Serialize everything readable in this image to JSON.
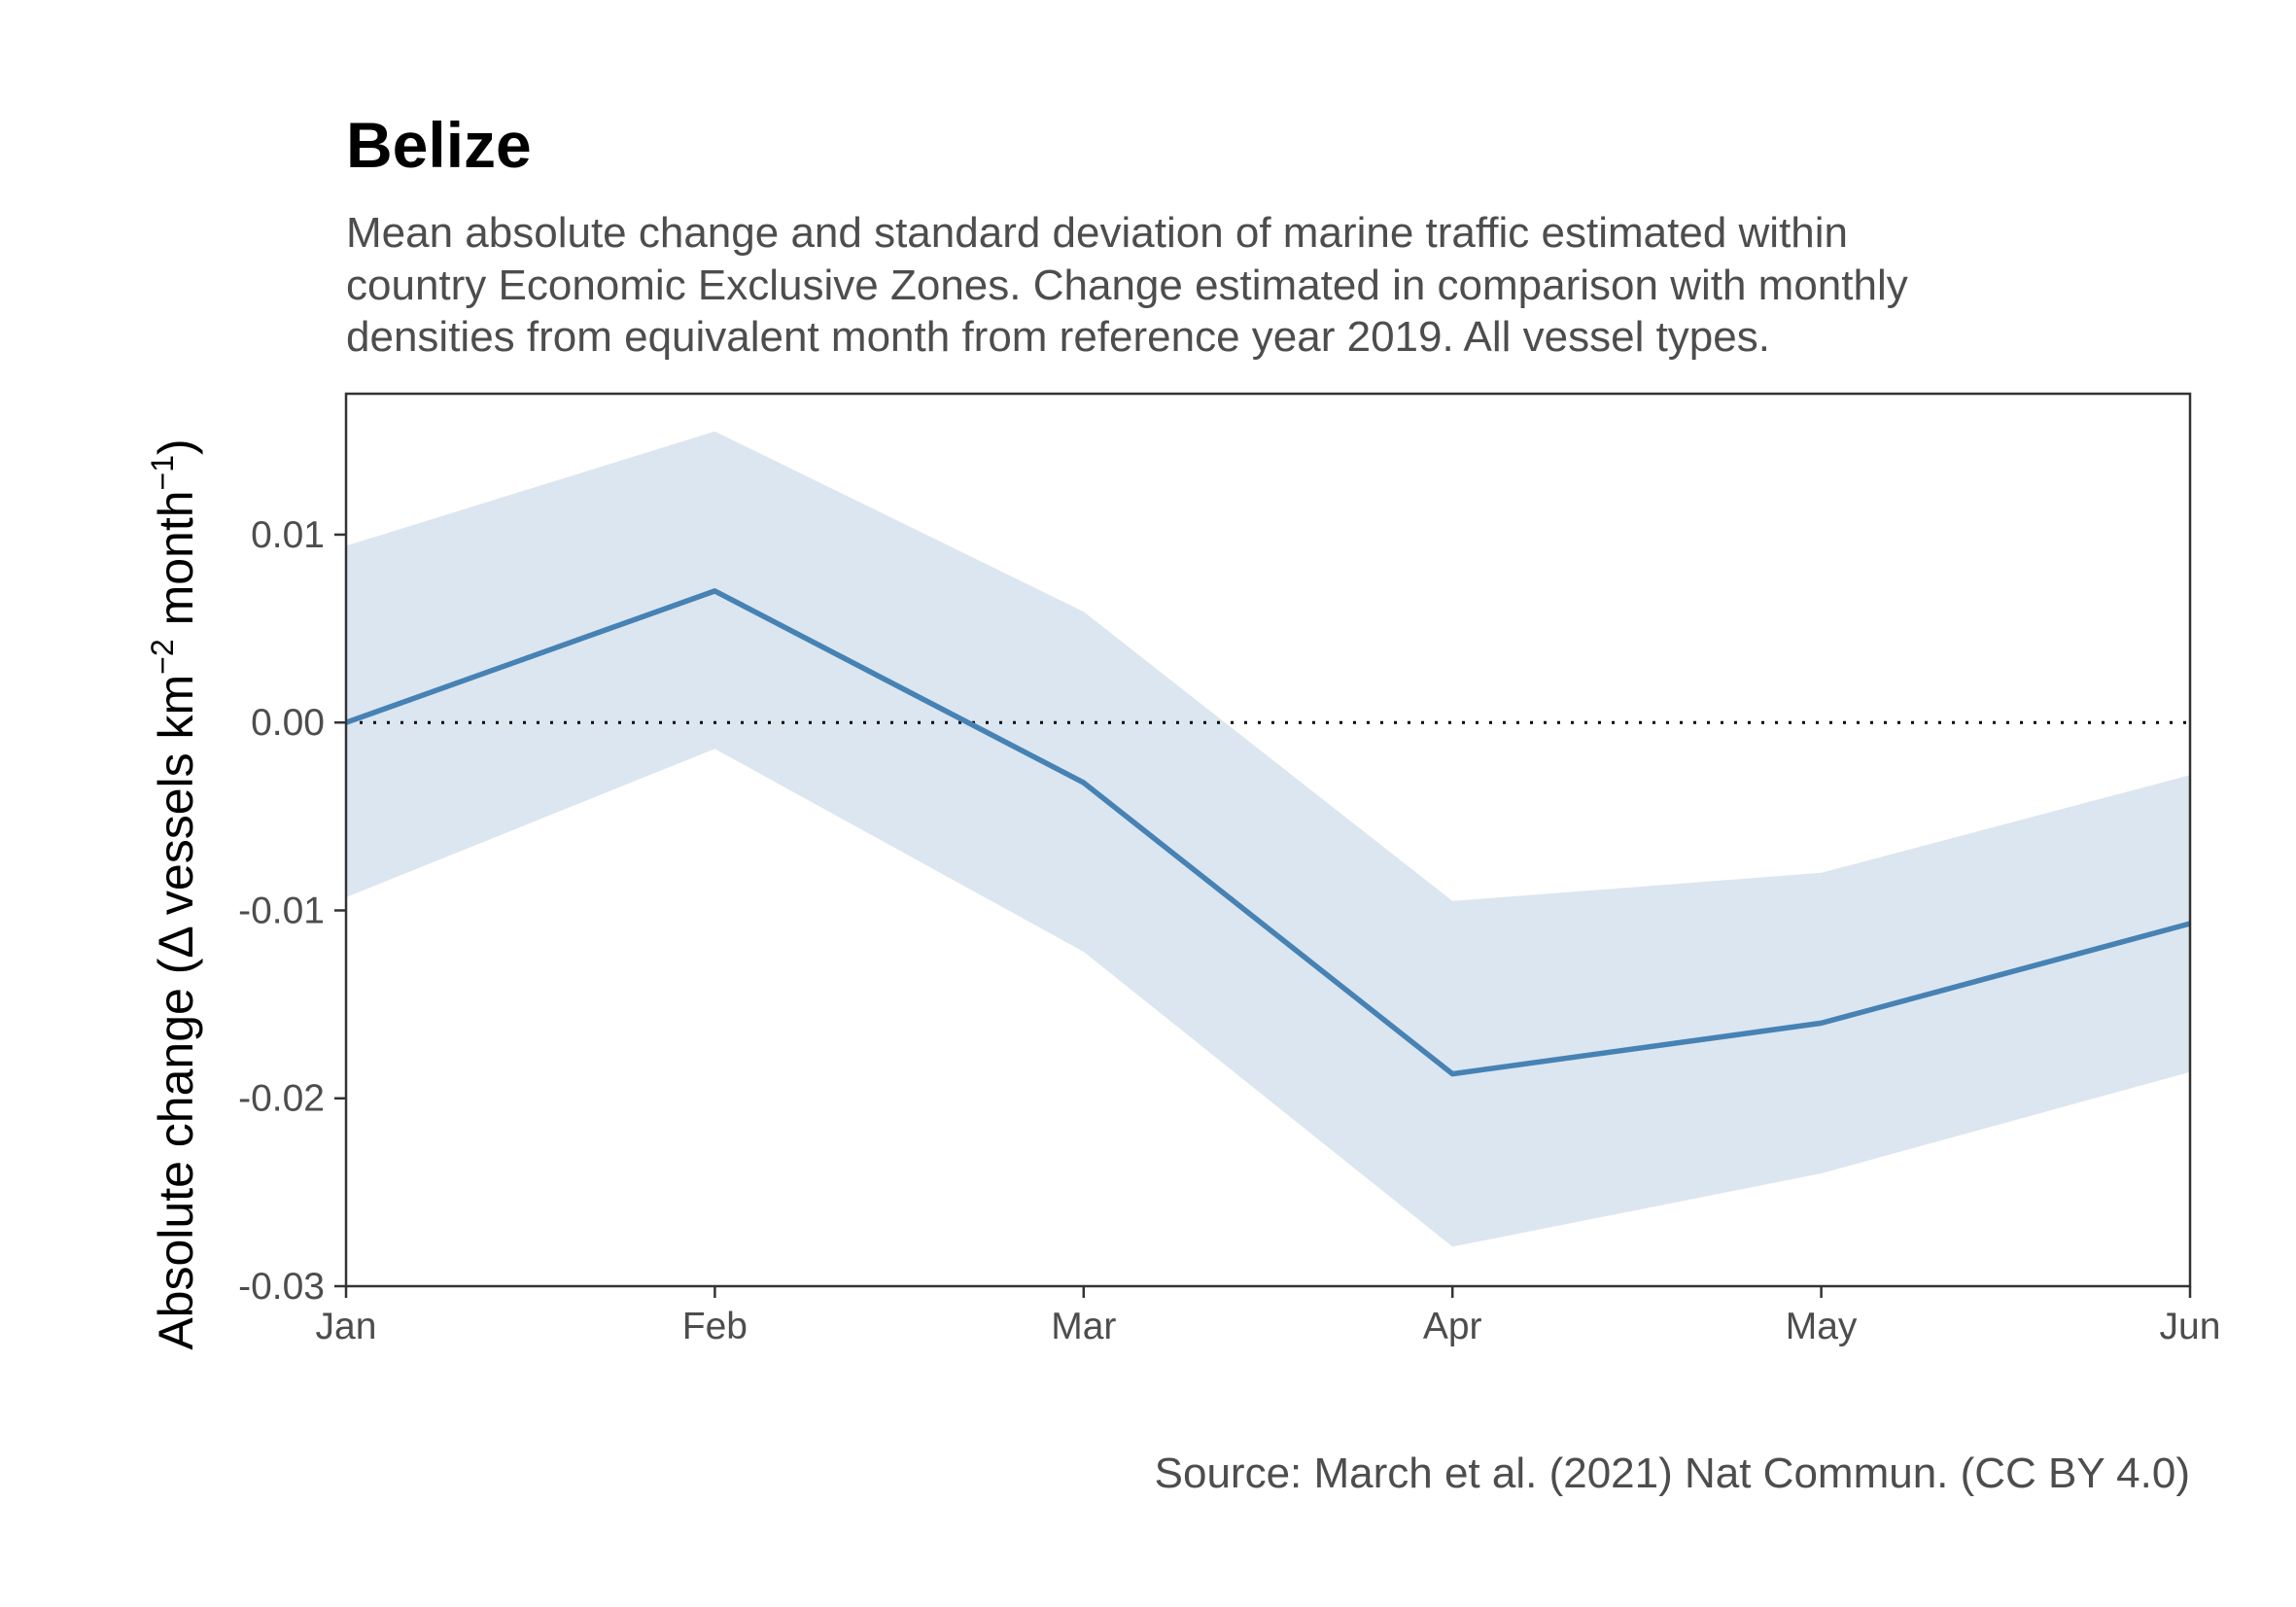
{
  "chart_data": {
    "type": "line",
    "title": "Belize",
    "subtitle": [
      "Mean absolute change and standard deviation of marine traffic estimated within",
      "country Economic Exclusive Zones. Change estimated in comparison with monthly",
      "densities from equivalent month from reference year 2019. All vessel types."
    ],
    "ylabel": {
      "prefix": "Absolute change (",
      "delta": "Δ",
      "middle": " vessels km",
      "sup1": "−2",
      "after": " month",
      "sup2": "−1",
      "suffix": ")"
    },
    "caption": "Source: March et al. (2021) Nat Commun. (CC BY 4.0)",
    "categories": [
      "Jan",
      "Feb",
      "Mar",
      "Apr",
      "May",
      "Jun"
    ],
    "series": [
      {
        "values": [
          0.0,
          0.007,
          -0.0032,
          -0.0187,
          -0.016,
          -0.0107
        ],
        "lower": [
          -0.0093,
          -0.0014,
          -0.0122,
          -0.0279,
          -0.024,
          -0.0186
        ],
        "upper": [
          0.0094,
          0.0155,
          0.0059,
          -0.0095,
          -0.008,
          -0.0028
        ],
        "color": "#4682b4",
        "band_color": "#dce6f0"
      }
    ],
    "yticks": [
      0.01,
      0.0,
      -0.01,
      -0.02,
      -0.03
    ],
    "ytick_labels": [
      "0.01",
      "0.00",
      "-0.01",
      "-0.02",
      "-0.03"
    ],
    "ylim": [
      -0.03,
      0.0175
    ],
    "reference_line": {
      "y": 0,
      "style": "dotted",
      "color": "#000000"
    },
    "grid": false,
    "legend": "none"
  }
}
